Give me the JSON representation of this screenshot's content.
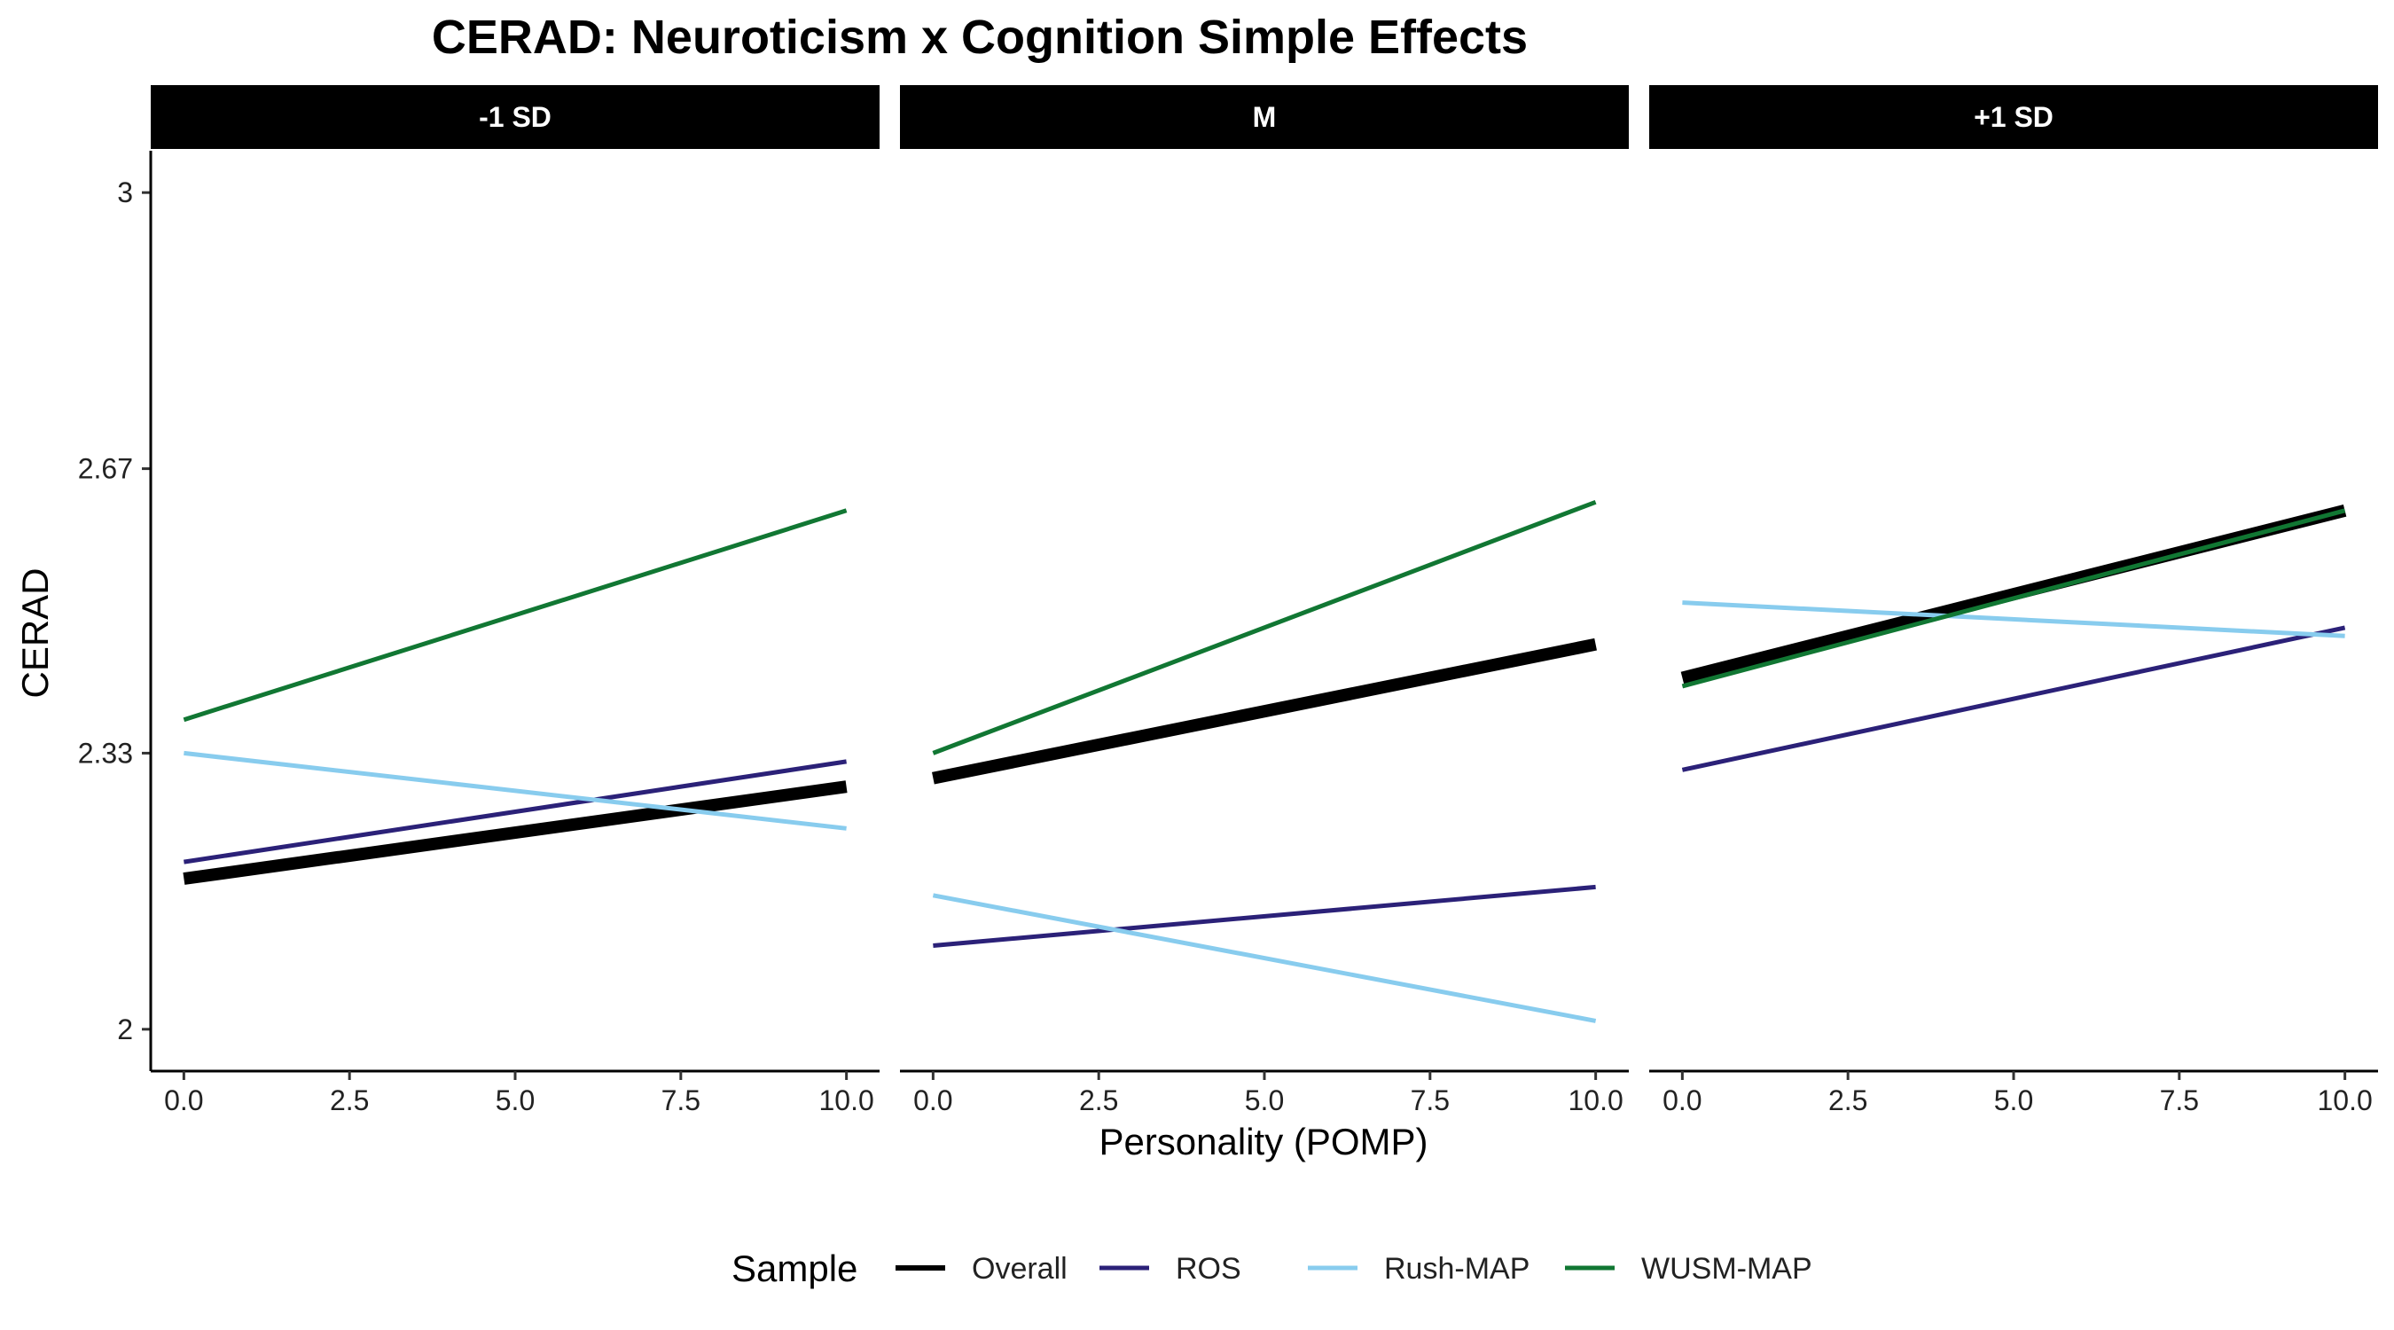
{
  "chart_data": {
    "type": "line",
    "title": "CERAD: Neuroticism x Cognition Simple Effects",
    "xlabel": "Personality (POMP)",
    "ylabel": "CERAD",
    "xlim": [
      -0.5,
      10.5
    ],
    "ylim": [
      1.95,
      3.05
    ],
    "x_ticks": [
      0,
      2.5,
      5,
      7.5,
      10
    ],
    "x_tick_labels": [
      "0.0",
      "2.5",
      "5.0",
      "7.5",
      "10.0"
    ],
    "y_ticks": [
      2,
      2.33,
      2.67,
      3
    ],
    "y_tick_labels": [
      "2",
      "2.33",
      "2.67",
      "3"
    ],
    "grid": false,
    "legend": {
      "title": "Sample",
      "position": "bottom"
    },
    "series_styles": [
      {
        "name": "Overall",
        "color": "#000000",
        "width": "thick"
      },
      {
        "name": "ROS",
        "color": "#2b2178",
        "width": "normal"
      },
      {
        "name": "Rush-MAP",
        "color": "#88ccee",
        "width": "normal"
      },
      {
        "name": "WUSM-MAP",
        "color": "#117733",
        "width": "normal"
      }
    ],
    "panels": [
      {
        "label": "-1 SD",
        "series": [
          {
            "name": "Overall",
            "x": [
              0,
              10
            ],
            "y": [
              2.18,
              2.29
            ]
          },
          {
            "name": "ROS",
            "x": [
              0,
              10
            ],
            "y": [
              2.2,
              2.32
            ]
          },
          {
            "name": "Rush-MAP",
            "x": [
              0,
              10
            ],
            "y": [
              2.33,
              2.24
            ]
          },
          {
            "name": "WUSM-MAP",
            "x": [
              0,
              10
            ],
            "y": [
              2.37,
              2.62
            ]
          }
        ]
      },
      {
        "label": "M",
        "series": [
          {
            "name": "Overall",
            "x": [
              0,
              10
            ],
            "y": [
              2.3,
              2.46
            ]
          },
          {
            "name": "ROS",
            "x": [
              0,
              10
            ],
            "y": [
              2.1,
              2.17
            ]
          },
          {
            "name": "Rush-MAP",
            "x": [
              0,
              10
            ],
            "y": [
              2.16,
              2.01
            ]
          },
          {
            "name": "WUSM-MAP",
            "x": [
              0,
              10
            ],
            "y": [
              2.33,
              2.63
            ]
          }
        ]
      },
      {
        "label": "+1 SD",
        "series": [
          {
            "name": "Overall",
            "x": [
              0,
              10
            ],
            "y": [
              2.42,
              2.62
            ]
          },
          {
            "name": "ROS",
            "x": [
              0,
              10
            ],
            "y": [
              2.31,
              2.48
            ]
          },
          {
            "name": "Rush-MAP",
            "x": [
              0,
              10
            ],
            "y": [
              2.51,
              2.47
            ]
          },
          {
            "name": "WUSM-MAP",
            "x": [
              0,
              10
            ],
            "y": [
              2.41,
              2.62
            ]
          }
        ]
      }
    ]
  }
}
